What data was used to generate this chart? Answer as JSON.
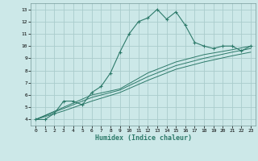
{
  "xlabel": "Humidex (Indice chaleur)",
  "xlim": [
    -0.5,
    23.5
  ],
  "ylim": [
    3.5,
    13.5
  ],
  "xticks": [
    0,
    1,
    2,
    3,
    4,
    5,
    6,
    7,
    8,
    9,
    10,
    11,
    12,
    13,
    14,
    15,
    16,
    17,
    18,
    19,
    20,
    21,
    22,
    23
  ],
  "yticks": [
    4,
    5,
    6,
    7,
    8,
    9,
    10,
    11,
    12,
    13
  ],
  "background_color": "#cce8e8",
  "grid_color": "#aacccc",
  "line_color": "#2d7a6a",
  "main_line": [
    [
      0,
      4.0
    ],
    [
      1,
      4.0
    ],
    [
      2,
      4.5
    ],
    [
      3,
      5.5
    ],
    [
      4,
      5.5
    ],
    [
      5,
      5.2
    ],
    [
      6,
      6.2
    ],
    [
      7,
      6.7
    ],
    [
      8,
      7.8
    ],
    [
      9,
      9.5
    ],
    [
      10,
      11.0
    ],
    [
      11,
      12.0
    ],
    [
      12,
      12.3
    ],
    [
      13,
      13.0
    ],
    [
      14,
      12.2
    ],
    [
      15,
      12.8
    ],
    [
      16,
      11.7
    ],
    [
      17,
      10.3
    ],
    [
      18,
      10.0
    ],
    [
      19,
      9.8
    ],
    [
      20,
      10.0
    ],
    [
      21,
      10.0
    ],
    [
      22,
      9.6
    ],
    [
      23,
      10.0
    ]
  ],
  "line2": [
    [
      0,
      4.0
    ],
    [
      3,
      5.0
    ],
    [
      6,
      6.0
    ],
    [
      9,
      6.5
    ],
    [
      12,
      7.8
    ],
    [
      15,
      8.7
    ],
    [
      18,
      9.3
    ],
    [
      21,
      9.7
    ],
    [
      23,
      10.0
    ]
  ],
  "line3": [
    [
      0,
      4.0
    ],
    [
      3,
      4.9
    ],
    [
      6,
      5.8
    ],
    [
      9,
      6.4
    ],
    [
      12,
      7.5
    ],
    [
      15,
      8.4
    ],
    [
      18,
      9.0
    ],
    [
      21,
      9.5
    ],
    [
      23,
      9.8
    ]
  ],
  "line4": [
    [
      0,
      4.0
    ],
    [
      3,
      4.7
    ],
    [
      6,
      5.5
    ],
    [
      9,
      6.2
    ],
    [
      12,
      7.2
    ],
    [
      15,
      8.1
    ],
    [
      18,
      8.7
    ],
    [
      21,
      9.2
    ],
    [
      23,
      9.5
    ]
  ]
}
